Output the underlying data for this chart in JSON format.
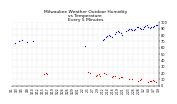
{
  "title": "Milwaukee Weather Outdoor Humidity\nvs Temperature\nEvery 5 Minutes",
  "title_fontsize": 3.2,
  "bg_color": "#ffffff",
  "plot_bg_color": "#ffffff",
  "grid_color": "#bbbbbb",
  "humidity_color": "#0000cc",
  "temp_color": "#cc0000",
  "ylim": [
    0,
    100
  ],
  "ytick_labels": [
    "",
    "10",
    "20",
    "30",
    "40",
    "50",
    "60",
    "70",
    "80",
    "90",
    "100"
  ],
  "xlabel_fontsize": 2.2,
  "ylabel_fontsize": 2.5,
  "marker_size": 0.8,
  "humidity_x": [
    0.02,
    0.05,
    0.07,
    0.1,
    0.14,
    0.5,
    0.62,
    0.63,
    0.64,
    0.65,
    0.66,
    0.67,
    0.68,
    0.7,
    0.71,
    0.72,
    0.73,
    0.74,
    0.75,
    0.78,
    0.79,
    0.8,
    0.81,
    0.82,
    0.83,
    0.84,
    0.85,
    0.86,
    0.87,
    0.88,
    0.89,
    0.9,
    0.91,
    0.92,
    0.93,
    0.94,
    0.95,
    0.96,
    0.97,
    0.98,
    0.99
  ],
  "humidity_y": [
    68,
    70,
    72,
    69,
    71,
    62,
    72,
    74,
    76,
    78,
    80,
    79,
    77,
    82,
    84,
    86,
    85,
    83,
    80,
    86,
    88,
    90,
    89,
    87,
    88,
    90,
    92,
    93,
    91,
    89,
    90,
    92,
    94,
    95,
    93,
    91,
    92,
    93,
    94,
    95,
    96
  ],
  "temp_x": [
    0.22,
    0.23,
    0.24,
    0.52,
    0.53,
    0.57,
    0.58,
    0.59,
    0.6,
    0.63,
    0.64,
    0.68,
    0.69,
    0.7,
    0.73,
    0.74,
    0.75,
    0.8,
    0.82,
    0.86,
    0.87,
    0.88,
    0.93,
    0.94,
    0.95,
    0.96,
    0.97,
    0.98
  ],
  "temp_y": [
    18,
    20,
    19,
    22,
    20,
    15,
    17,
    18,
    16,
    20,
    19,
    14,
    15,
    16,
    12,
    13,
    14,
    10,
    11,
    8,
    9,
    10,
    6,
    7,
    8,
    9,
    7,
    6
  ],
  "xtick_labels": [
    "1/1",
    "1/3",
    "1/5",
    "1/8",
    "1/10",
    "1/12",
    "1/15",
    "1/17",
    "1/19",
    "1/22",
    "1/24",
    "1/26",
    "1/29",
    "1/31",
    "2/2",
    "2/5",
    "2/7",
    "2/9",
    "2/12",
    "2/14",
    "2/16",
    "2/19",
    "2/21",
    "2/23",
    "2/26",
    "2/28",
    "3/2",
    "3/4",
    "3/7",
    "3/9"
  ]
}
